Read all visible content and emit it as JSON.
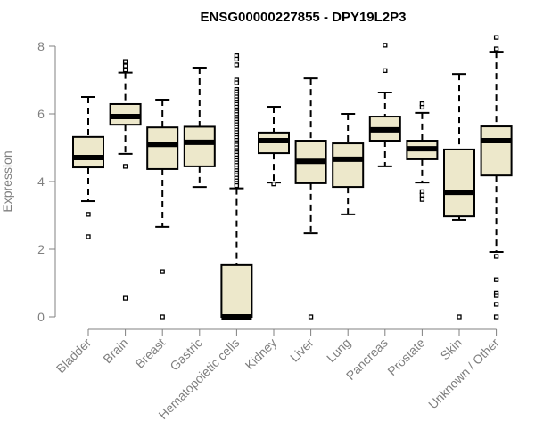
{
  "chart_data": {
    "type": "box",
    "title": "ENSG00000227855 - DPY19L2P3",
    "xlabel": "",
    "ylabel": "Expression",
    "ylim": [
      0,
      8
    ],
    "yticks": [
      "0",
      "2",
      "4",
      "6",
      "8"
    ],
    "grid": false,
    "colors": {
      "box_fill": "#EDE8CB",
      "stroke": "#000000",
      "axis": "#808080",
      "label": "#808080"
    },
    "categories": [
      "Bladder",
      "Brain",
      "Breast",
      "Gastric",
      "Hematopoietic cells",
      "Kidney",
      "Liver",
      "Lung",
      "Pancreas",
      "Prostate",
      "Skin",
      "Unknown / Other"
    ],
    "boxes": [
      {
        "low": 3.42,
        "q1": 4.42,
        "median": 4.71,
        "q3": 5.32,
        "high": 6.5,
        "outliers": [
          3.03,
          2.37
        ]
      },
      {
        "low": 4.82,
        "q1": 5.68,
        "median": 5.92,
        "q3": 6.29,
        "high": 7.22,
        "outliers": [
          7.3,
          7.42,
          7.55,
          4.45,
          0.55
        ]
      },
      {
        "low": 2.66,
        "q1": 4.37,
        "median": 5.1,
        "q3": 5.6,
        "high": 6.42,
        "outliers": [
          1.34,
          0
        ]
      },
      {
        "low": 3.84,
        "q1": 4.45,
        "median": 5.16,
        "q3": 5.62,
        "high": 7.37,
        "outliers": []
      },
      {
        "low": 0,
        "q1": 0,
        "median": 0,
        "q3": 1.53,
        "high": 3.8,
        "outliers": [
          7.72,
          7.62,
          7.45,
          7.0,
          6.92,
          6.72,
          6.65,
          6.58,
          6.5,
          6.42,
          6.35,
          6.28,
          6.2,
          6.12,
          6.05,
          5.98,
          5.9,
          5.82,
          5.75,
          5.68,
          5.6,
          5.52,
          5.45,
          5.38,
          5.3,
          5.22,
          5.15,
          5.08,
          5.0,
          4.92,
          4.85,
          4.78,
          4.7,
          4.62,
          4.55,
          4.48,
          4.4,
          4.32,
          4.25,
          4.18,
          4.1,
          4.02,
          3.95,
          3.88
        ]
      },
      {
        "low": 3.97,
        "q1": 4.84,
        "median": 5.21,
        "q3": 5.45,
        "high": 6.21,
        "outliers": [
          3.93
        ]
      },
      {
        "low": 2.47,
        "q1": 3.95,
        "median": 4.6,
        "q3": 5.21,
        "high": 7.05,
        "outliers": [
          0
        ]
      },
      {
        "low": 3.03,
        "q1": 3.84,
        "median": 4.66,
        "q3": 5.13,
        "high": 6.0,
        "outliers": []
      },
      {
        "low": 4.45,
        "q1": 5.21,
        "median": 5.53,
        "q3": 5.92,
        "high": 6.63,
        "outliers": [
          7.28,
          8.03
        ]
      },
      {
        "low": 3.97,
        "q1": 4.66,
        "median": 4.97,
        "q3": 5.21,
        "high": 6.03,
        "outliers": [
          6.2,
          6.3,
          3.7,
          3.6,
          3.47
        ]
      },
      {
        "low": 2.87,
        "q1": 2.97,
        "median": 3.68,
        "q3": 4.95,
        "high": 7.18,
        "outliers": [
          0
        ]
      },
      {
        "low": 1.92,
        "q1": 4.18,
        "median": 5.21,
        "q3": 5.63,
        "high": 7.84,
        "outliers": [
          8.26,
          7.92,
          1.79,
          1.1,
          0.7,
          0.63,
          0.37,
          0
        ]
      }
    ]
  }
}
